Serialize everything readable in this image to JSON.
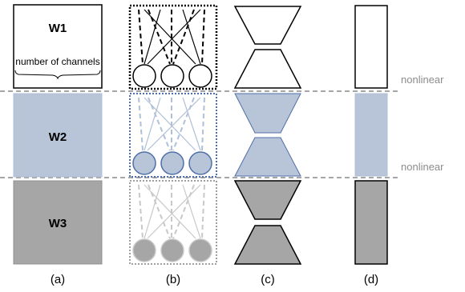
{
  "blocks": {
    "w1": "W1",
    "w2": "W2",
    "w3": "W3",
    "channels_note": "number of  channels"
  },
  "nonlinear_labels": [
    "nonlinear",
    "nonlinear"
  ],
  "captions": [
    "(a)",
    "(b)",
    "(c)",
    "(d)"
  ],
  "colors": {
    "layer1_fill": "#ffffff",
    "layer2_fill": "#b8c4d8",
    "layer3_fill": "#a6a6a6",
    "layer1_stroke": "#000000",
    "layer2_stroke": "#b0c0d8",
    "layer2_box_stroke": "#4f6fa8",
    "layer3_stroke": "#c8c8c8",
    "layer3_box_stroke": "#a0a0a0",
    "separator": "#a6a6a6",
    "label_gray": "#8c8c8c"
  }
}
